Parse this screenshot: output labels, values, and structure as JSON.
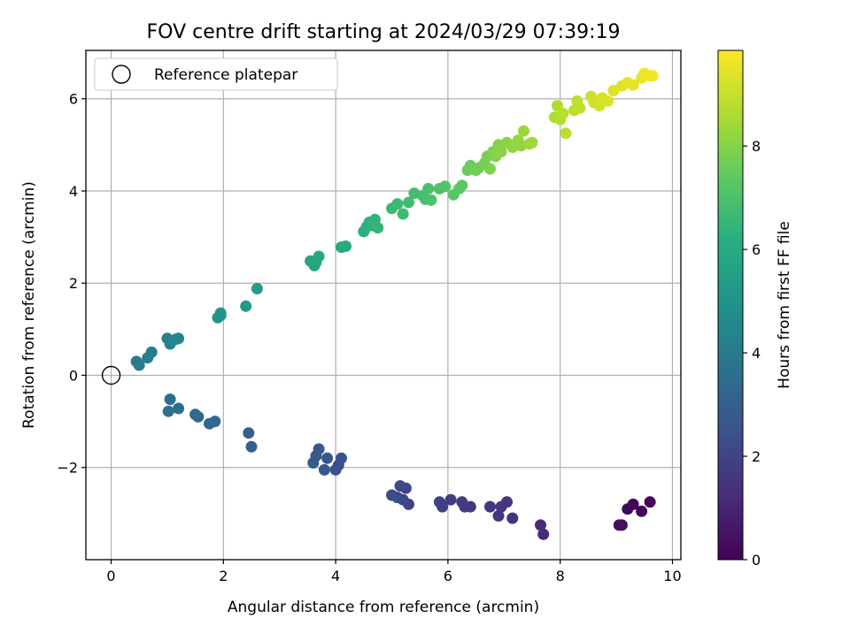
{
  "chart_data": {
    "type": "scatter",
    "title": "FOV centre drift starting at 2024/03/29 07:39:19",
    "xlabel": "Angular distance from reference (arcmin)",
    "ylabel": "Rotation from reference (arcmin)",
    "xlim": [
      -0.45,
      10.15
    ],
    "ylim": [
      -4.0,
      7.05
    ],
    "xticks": [
      0,
      2,
      4,
      6,
      8,
      10
    ],
    "yticks": [
      -2,
      0,
      2,
      4,
      6
    ],
    "grid": true,
    "legend": {
      "position": "top-left",
      "entries": [
        "Reference platepar"
      ]
    },
    "reference_point": {
      "x": 0,
      "y": 0,
      "marker": "open-circle"
    },
    "colorbar": {
      "label": "Hours from first FF file",
      "range": [
        0,
        9.85
      ],
      "ticks": [
        0,
        2,
        4,
        6,
        8
      ],
      "colormap": "viridis"
    },
    "points": [
      [
        9.6,
        -2.75,
        0.05
      ],
      [
        9.45,
        -2.95,
        0.1
      ],
      [
        9.3,
        -2.8,
        0.15
      ],
      [
        9.2,
        -2.9,
        0.2
      ],
      [
        9.1,
        -3.25,
        0.3
      ],
      [
        9.05,
        -3.25,
        0.35
      ],
      [
        7.7,
        -3.45,
        1.2
      ],
      [
        7.65,
        -3.25,
        1.25
      ],
      [
        7.15,
        -3.1,
        1.4
      ],
      [
        7.05,
        -2.75,
        1.45
      ],
      [
        6.95,
        -2.85,
        1.5
      ],
      [
        6.9,
        -3.05,
        1.55
      ],
      [
        6.75,
        -2.85,
        1.6
      ],
      [
        6.4,
        -2.85,
        1.65
      ],
      [
        6.3,
        -2.85,
        1.7
      ],
      [
        6.25,
        -2.75,
        1.75
      ],
      [
        6.05,
        -2.7,
        1.8
      ],
      [
        5.9,
        -2.85,
        1.85
      ],
      [
        5.85,
        -2.75,
        1.9
      ],
      [
        5.3,
        -2.8,
        2.0
      ],
      [
        5.25,
        -2.45,
        2.05
      ],
      [
        5.2,
        -2.7,
        2.1
      ],
      [
        5.15,
        -2.4,
        2.15
      ],
      [
        5.1,
        -2.65,
        2.2
      ],
      [
        5.0,
        -2.6,
        2.25
      ],
      [
        4.1,
        -1.8,
        2.45
      ],
      [
        4.05,
        -1.95,
        2.5
      ],
      [
        4.0,
        -2.05,
        2.55
      ],
      [
        3.85,
        -1.8,
        2.6
      ],
      [
        3.8,
        -2.05,
        2.65
      ],
      [
        3.7,
        -1.6,
        2.7
      ],
      [
        3.65,
        -1.75,
        2.75
      ],
      [
        3.6,
        -1.9,
        2.8
      ],
      [
        2.5,
        -1.55,
        3.0
      ],
      [
        2.45,
        -1.25,
        3.05
      ],
      [
        1.85,
        -1.0,
        3.25
      ],
      [
        1.75,
        -1.05,
        3.3
      ],
      [
        1.55,
        -0.9,
        3.35
      ],
      [
        1.5,
        -0.85,
        3.4
      ],
      [
        1.2,
        -0.72,
        3.5
      ],
      [
        1.05,
        -0.52,
        3.55
      ],
      [
        1.02,
        -0.78,
        3.6
      ],
      [
        0.45,
        0.3,
        4.0
      ],
      [
        0.5,
        0.22,
        4.05
      ],
      [
        0.65,
        0.38,
        4.1
      ],
      [
        0.72,
        0.5,
        4.15
      ],
      [
        1.0,
        0.8,
        4.3
      ],
      [
        1.05,
        0.68,
        4.35
      ],
      [
        1.15,
        0.78,
        4.4
      ],
      [
        1.2,
        0.8,
        4.45
      ],
      [
        1.9,
        1.25,
        5.0
      ],
      [
        1.95,
        1.3,
        5.05
      ],
      [
        1.95,
        1.35,
        5.1
      ],
      [
        2.4,
        1.5,
        5.3
      ],
      [
        2.6,
        1.88,
        5.4
      ],
      [
        3.55,
        2.48,
        5.75
      ],
      [
        3.62,
        2.38,
        5.8
      ],
      [
        3.65,
        2.45,
        5.85
      ],
      [
        3.7,
        2.58,
        5.9
      ],
      [
        4.1,
        2.78,
        6.0
      ],
      [
        4.18,
        2.8,
        6.05
      ],
      [
        4.5,
        3.12,
        6.2
      ],
      [
        4.55,
        3.22,
        6.25
      ],
      [
        4.6,
        3.32,
        6.3
      ],
      [
        4.65,
        3.25,
        6.35
      ],
      [
        4.7,
        3.38,
        6.4
      ],
      [
        4.75,
        3.2,
        6.45
      ],
      [
        5.0,
        3.62,
        6.6
      ],
      [
        5.1,
        3.72,
        6.65
      ],
      [
        5.2,
        3.5,
        6.7
      ],
      [
        5.3,
        3.75,
        6.75
      ],
      [
        5.4,
        3.95,
        6.8
      ],
      [
        5.55,
        3.9,
        6.85
      ],
      [
        5.6,
        3.82,
        6.9
      ],
      [
        5.65,
        4.05,
        6.95
      ],
      [
        5.7,
        3.8,
        7.0
      ],
      [
        5.85,
        4.05,
        7.05
      ],
      [
        5.95,
        4.1,
        7.1
      ],
      [
        6.1,
        3.92,
        7.25
      ],
      [
        6.2,
        4.05,
        7.3
      ],
      [
        6.25,
        4.12,
        7.35
      ],
      [
        6.35,
        4.45,
        7.55
      ],
      [
        6.4,
        4.55,
        7.6
      ],
      [
        6.5,
        4.45,
        7.65
      ],
      [
        6.55,
        4.5,
        7.7
      ],
      [
        6.65,
        4.6,
        7.75
      ],
      [
        6.7,
        4.75,
        7.8
      ],
      [
        6.75,
        4.48,
        7.85
      ],
      [
        6.8,
        4.85,
        7.9
      ],
      [
        6.85,
        4.75,
        7.95
      ],
      [
        6.9,
        5.0,
        8.0
      ],
      [
        6.95,
        4.85,
        8.05
      ],
      [
        7.05,
        5.05,
        8.1
      ],
      [
        7.15,
        4.95,
        8.15
      ],
      [
        7.25,
        5.1,
        8.2
      ],
      [
        7.3,
        4.98,
        8.25
      ],
      [
        7.35,
        5.3,
        8.3
      ],
      [
        7.45,
        5.02,
        8.35
      ],
      [
        7.5,
        5.05,
        8.4
      ],
      [
        7.9,
        5.6,
        8.6
      ],
      [
        7.95,
        5.85,
        8.65
      ],
      [
        8.0,
        5.55,
        8.7
      ],
      [
        8.05,
        5.68,
        8.75
      ],
      [
        8.1,
        5.25,
        8.8
      ],
      [
        8.25,
        5.75,
        8.85
      ],
      [
        8.3,
        5.95,
        8.9
      ],
      [
        8.35,
        5.8,
        8.95
      ],
      [
        8.55,
        6.05,
        9.1
      ],
      [
        8.6,
        5.92,
        9.15
      ],
      [
        8.7,
        5.85,
        9.2
      ],
      [
        8.75,
        6.02,
        9.25
      ],
      [
        8.85,
        5.95,
        9.3
      ],
      [
        8.95,
        6.18,
        9.35
      ],
      [
        9.1,
        6.28,
        9.4
      ],
      [
        9.2,
        6.35,
        9.45
      ],
      [
        9.3,
        6.3,
        9.5
      ],
      [
        9.45,
        6.45,
        9.55
      ],
      [
        9.5,
        6.55,
        9.6
      ],
      [
        9.6,
        6.5,
        9.65
      ],
      [
        9.65,
        6.5,
        9.7
      ]
    ]
  }
}
